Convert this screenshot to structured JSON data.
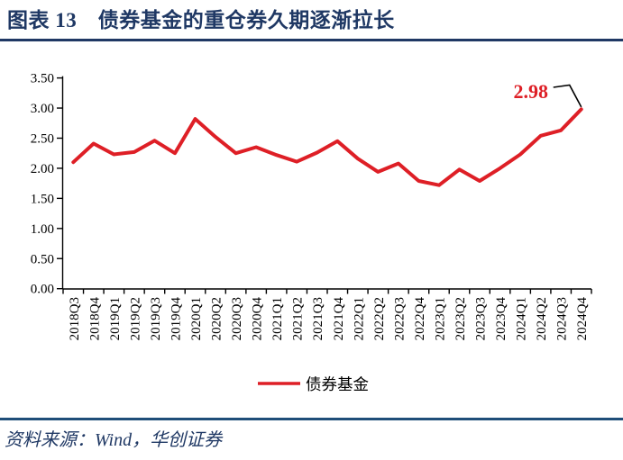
{
  "header": {
    "title": "图表 13　债券基金的重仓券久期逐渐拉长"
  },
  "footer": {
    "source": "资料来源：Wind，华创证券"
  },
  "colors": {
    "navy": "#1F3864",
    "rule_navy": "#1F4E79",
    "line_red": "#DE1F26",
    "axis_black": "#000000",
    "label_black": "#000000"
  },
  "chart_data": {
    "type": "line",
    "title": "",
    "categories": [
      "2018Q3",
      "2018Q4",
      "2019Q1",
      "2019Q2",
      "2019Q3",
      "2019Q4",
      "2020Q1",
      "2020Q2",
      "2020Q3",
      "2020Q4",
      "2021Q1",
      "2021Q2",
      "2021Q3",
      "2021Q4",
      "2022Q1",
      "2022Q2",
      "2022Q3",
      "2022Q4",
      "2023Q1",
      "2023Q2",
      "2023Q3",
      "2023Q4",
      "2024Q1",
      "2024Q2",
      "2024Q3",
      "2024Q4"
    ],
    "series": [
      {
        "name": "债券基金",
        "color": "#DE1F26",
        "values": [
          2.1,
          2.41,
          2.23,
          2.27,
          2.46,
          2.25,
          2.82,
          2.52,
          2.25,
          2.35,
          2.22,
          2.11,
          2.26,
          2.45,
          2.16,
          1.94,
          2.08,
          1.79,
          1.72,
          1.98,
          1.79,
          2.0,
          2.23,
          2.54,
          2.63,
          2.98
        ]
      }
    ],
    "ylim": [
      0,
      3.5
    ],
    "ytick_step": 0.5,
    "ytick_labels": [
      "0.00",
      "0.50",
      "1.00",
      "1.50",
      "2.00",
      "2.50",
      "3.00",
      "3.50"
    ],
    "grid": false,
    "legend_position": "bottom",
    "annotation": {
      "text": "2.98",
      "category": "2024Q4"
    }
  }
}
